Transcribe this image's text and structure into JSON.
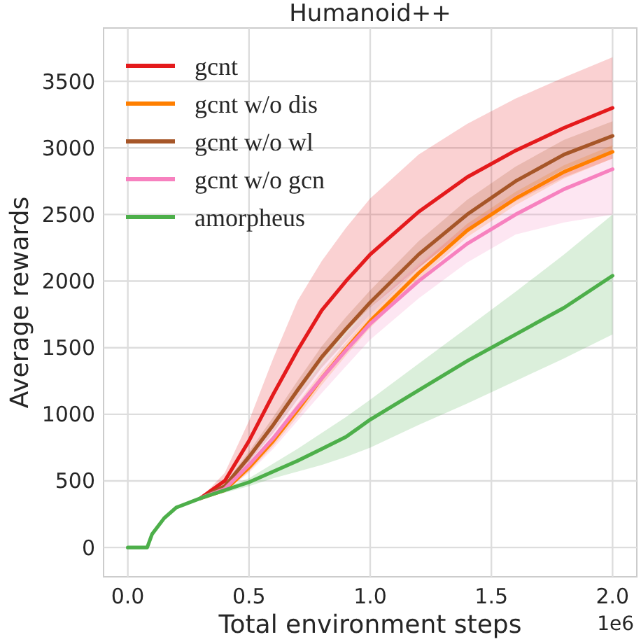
{
  "chart_data": {
    "type": "line",
    "title": "Humanoid++",
    "xlabel": "Total environment steps",
    "ylabel": "Average rewards",
    "annotations": [
      "1e6"
    ],
    "x": [
      0,
      0.08,
      0.1,
      0.15,
      0.2,
      0.3,
      0.4,
      0.5,
      0.6,
      0.7,
      0.8,
      0.9,
      1.0,
      1.2,
      1.4,
      1.6,
      1.8,
      2.0
    ],
    "xlim": [
      -0.1,
      2.1
    ],
    "xticks": [
      {
        "value": 0,
        "label": "0.0"
      },
      0.5,
      {
        "value": 1,
        "label": "1.0"
      },
      1.5,
      {
        "value": 2,
        "label": "2.0"
      }
    ],
    "ylim": [
      -220,
      3900
    ],
    "yticks": [
      0,
      500,
      1000,
      1500,
      2000,
      2500,
      3000,
      3500
    ],
    "grid": true,
    "legend": "top left",
    "marker": "none",
    "line_style": "solid",
    "series": [
      {
        "name": "gcnt",
        "color": "#e41a1c",
        "values": [
          null,
          null,
          null,
          null,
          null,
          370,
          500,
          800,
          1150,
          1480,
          1780,
          2000,
          2200,
          2520,
          2780,
          2980,
          3150,
          3300
        ],
        "lower": [
          null,
          null,
          null,
          null,
          null,
          370,
          440,
          650,
          900,
          1150,
          1400,
          1620,
          1800,
          2100,
          2380,
          2600,
          2780,
          2920
        ],
        "upper": [
          null,
          null,
          null,
          null,
          null,
          370,
          560,
          950,
          1420,
          1850,
          2150,
          2400,
          2620,
          2950,
          3180,
          3370,
          3530,
          3680
        ]
      },
      {
        "name": "gcnt w/o dis",
        "color": "#ff7f00",
        "values": [
          null,
          null,
          null,
          null,
          null,
          370,
          430,
          600,
          800,
          1030,
          1270,
          1490,
          1700,
          2060,
          2380,
          2620,
          2820,
          2970
        ],
        "lower": [
          null,
          null,
          null,
          null,
          null,
          370,
          415,
          570,
          760,
          980,
          1220,
          1440,
          1650,
          2010,
          2330,
          2570,
          2770,
          2920
        ],
        "upper": [
          null,
          null,
          null,
          null,
          null,
          370,
          445,
          630,
          840,
          1080,
          1320,
          1540,
          1750,
          2110,
          2430,
          2670,
          2870,
          3020
        ]
      },
      {
        "name": "gcnt w/o wl",
        "color": "#a65628",
        "values": [
          null,
          null,
          null,
          null,
          null,
          370,
          460,
          680,
          920,
          1180,
          1430,
          1640,
          1840,
          2200,
          2500,
          2750,
          2950,
          3090
        ],
        "lower": [
          null,
          null,
          null,
          null,
          null,
          370,
          440,
          640,
          860,
          1110,
          1350,
          1550,
          1750,
          2100,
          2390,
          2640,
          2840,
          2980
        ],
        "upper": [
          null,
          null,
          null,
          null,
          null,
          370,
          480,
          720,
          980,
          1250,
          1510,
          1730,
          1930,
          2300,
          2610,
          2860,
          3060,
          3200
        ]
      },
      {
        "name": "gcnt w/o gcn",
        "color": "#f781bf",
        "values": [
          null,
          null,
          null,
          null,
          null,
          370,
          440,
          620,
          820,
          1050,
          1270,
          1480,
          1680,
          2000,
          2280,
          2500,
          2690,
          2840
        ],
        "lower": [
          null,
          null,
          null,
          null,
          null,
          370,
          420,
          560,
          740,
          950,
          1160,
          1360,
          1560,
          1870,
          2140,
          2350,
          2440,
          2500
        ],
        "upper": [
          null,
          null,
          null,
          null,
          null,
          370,
          460,
          680,
          900,
          1150,
          1380,
          1600,
          1800,
          2130,
          2420,
          2650,
          2830,
          2950
        ]
      },
      {
        "name": "amorpheus",
        "color": "#4daf4a",
        "values": [
          0,
          0,
          100,
          220,
          300,
          370,
          430,
          490,
          570,
          650,
          740,
          830,
          960,
          1180,
          1400,
          1600,
          1800,
          2040
        ],
        "lower": [
          0,
          0,
          100,
          220,
          300,
          370,
          410,
          460,
          520,
          570,
          620,
          680,
          750,
          920,
          1080,
          1250,
          1420,
          1600
        ],
        "upper": [
          0,
          0,
          100,
          220,
          300,
          370,
          450,
          520,
          630,
          740,
          860,
          980,
          1110,
          1380,
          1650,
          1920,
          2200,
          2500
        ]
      }
    ]
  }
}
